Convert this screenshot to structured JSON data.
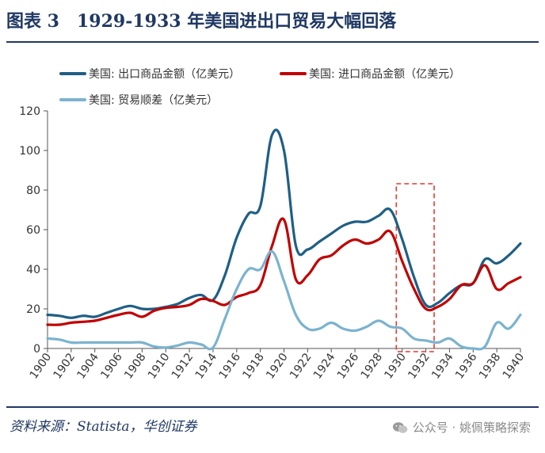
{
  "header": {
    "title": "图表 3　1929-1933 年美国进出口贸易大幅回落"
  },
  "footer": {
    "source": "资料来源：Statista，华创证券",
    "watermark": "公众号 · 姚佩策略探索"
  },
  "colors": {
    "exports": "#1f5f85",
    "imports": "#c00000",
    "balance": "#7bb3cf",
    "axis": "#555555",
    "highlight": "#e8372c",
    "brand": "#1f3864"
  },
  "chart_data": {
    "type": "line",
    "title": "1929-1933 年美国进出口贸易大幅回落",
    "xlabel": "",
    "ylabel": "",
    "xlim": [
      1900,
      1940
    ],
    "ylim": [
      0,
      120
    ],
    "yticks": [
      0,
      20,
      40,
      60,
      80,
      100,
      120
    ],
    "xticks": [
      1900,
      1902,
      1904,
      1906,
      1908,
      1910,
      1912,
      1914,
      1916,
      1918,
      1920,
      1922,
      1924,
      1926,
      1928,
      1930,
      1932,
      1934,
      1936,
      1938,
      1940
    ],
    "x": [
      1900,
      1901,
      1902,
      1903,
      1904,
      1905,
      1906,
      1907,
      1908,
      1909,
      1910,
      1911,
      1912,
      1913,
      1914,
      1915,
      1916,
      1917,
      1918,
      1919,
      1920,
      1921,
      1922,
      1923,
      1924,
      1925,
      1926,
      1927,
      1928,
      1929,
      1930,
      1931,
      1932,
      1933,
      1934,
      1935,
      1936,
      1937,
      1938,
      1939,
      1940
    ],
    "series": [
      {
        "name": "美国: 出口商品金额（亿美元）",
        "values": [
          17,
          16.5,
          15.5,
          16.5,
          16,
          18,
          20,
          21.5,
          20,
          20,
          21,
          22.5,
          25.5,
          27,
          24.5,
          37,
          56,
          68,
          72,
          108,
          100,
          52,
          50,
          54,
          58,
          62,
          64,
          64,
          67,
          70,
          55,
          36,
          22,
          23,
          28,
          32,
          33,
          45,
          43,
          47,
          53
        ]
      },
      {
        "name": "美国: 进口商品金额（亿美元）",
        "values": [
          12,
          12,
          13,
          13.5,
          14,
          15.5,
          17,
          18,
          16,
          19,
          20.5,
          21,
          22,
          25,
          24,
          22,
          26,
          28,
          32,
          52,
          65,
          35,
          37,
          45,
          47,
          52,
          55,
          53,
          55,
          59,
          44,
          30,
          20,
          21,
          25,
          32,
          33,
          42,
          30,
          33,
          36
        ]
      },
      {
        "name": "美国: 贸易顺差（亿美元）",
        "values": [
          5,
          4.5,
          3,
          3,
          3,
          3,
          3,
          3,
          3,
          1,
          0.5,
          1.5,
          3,
          2,
          0.5,
          15,
          30,
          40,
          40,
          49,
          34,
          17,
          10,
          10,
          13,
          10,
          9,
          11,
          14,
          11,
          10,
          5,
          4,
          3,
          5,
          1,
          0,
          1,
          13,
          10,
          17
        ]
      }
    ],
    "legend": "top",
    "highlight_range": [
      1929.5,
      1932.7
    ],
    "grid": false
  }
}
